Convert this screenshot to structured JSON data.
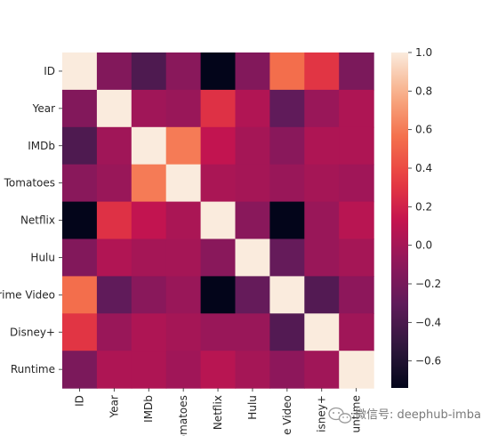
{
  "chart_data": {
    "type": "heatmap",
    "rows": [
      "ID",
      "Year",
      "IMDb",
      "Tomatoes",
      "Netflix",
      "Hulu",
      "rime Video",
      "Disney+",
      "Runtime"
    ],
    "cols": [
      "ID",
      "Year",
      "IMDb",
      "omatoes",
      "Netflix",
      "Hulu",
      "e Video",
      "isney+",
      "untime"
    ],
    "matrix": [
      [
        1.0,
        -0.15,
        -0.38,
        -0.12,
        -0.74,
        -0.15,
        0.55,
        0.3,
        -0.18
      ],
      [
        -0.15,
        1.0,
        -0.02,
        -0.05,
        0.28,
        0.05,
        -0.3,
        -0.05,
        0.04
      ],
      [
        -0.38,
        -0.02,
        1.0,
        0.6,
        0.12,
        0.0,
        -0.12,
        0.04,
        0.04
      ],
      [
        -0.12,
        -0.05,
        0.6,
        1.0,
        0.02,
        0.0,
        -0.05,
        0.0,
        -0.02
      ],
      [
        -0.74,
        0.28,
        0.12,
        0.02,
        1.0,
        -0.12,
        -0.74,
        -0.05,
        0.08
      ],
      [
        -0.15,
        0.05,
        0.0,
        0.0,
        -0.12,
        1.0,
        -0.28,
        -0.05,
        0.0
      ],
      [
        0.55,
        -0.3,
        -0.12,
        -0.05,
        -0.74,
        -0.28,
        1.0,
        -0.36,
        -0.1
      ],
      [
        0.3,
        -0.05,
        0.04,
        0.0,
        -0.05,
        -0.05,
        -0.36,
        1.0,
        -0.02
      ],
      [
        -0.18,
        0.04,
        0.04,
        -0.02,
        0.08,
        0.0,
        -0.1,
        -0.02,
        1.0
      ]
    ],
    "colorbar": {
      "min": -0.74,
      "max": 1.0,
      "ticks": [
        "1.0",
        "0.8",
        "0.6",
        "0.4",
        "0.2",
        "0.0",
        "−0.2",
        "−0.4",
        "−0.6"
      ],
      "tick_values": [
        1.0,
        0.8,
        0.6,
        0.4,
        0.2,
        0.0,
        -0.2,
        -0.4,
        -0.6
      ]
    },
    "colormap": "rocket",
    "title": "",
    "xlabel": "",
    "ylabel": ""
  },
  "watermark": {
    "text": "微信号: deephub-imba",
    "icon": "wechat-icon"
  }
}
